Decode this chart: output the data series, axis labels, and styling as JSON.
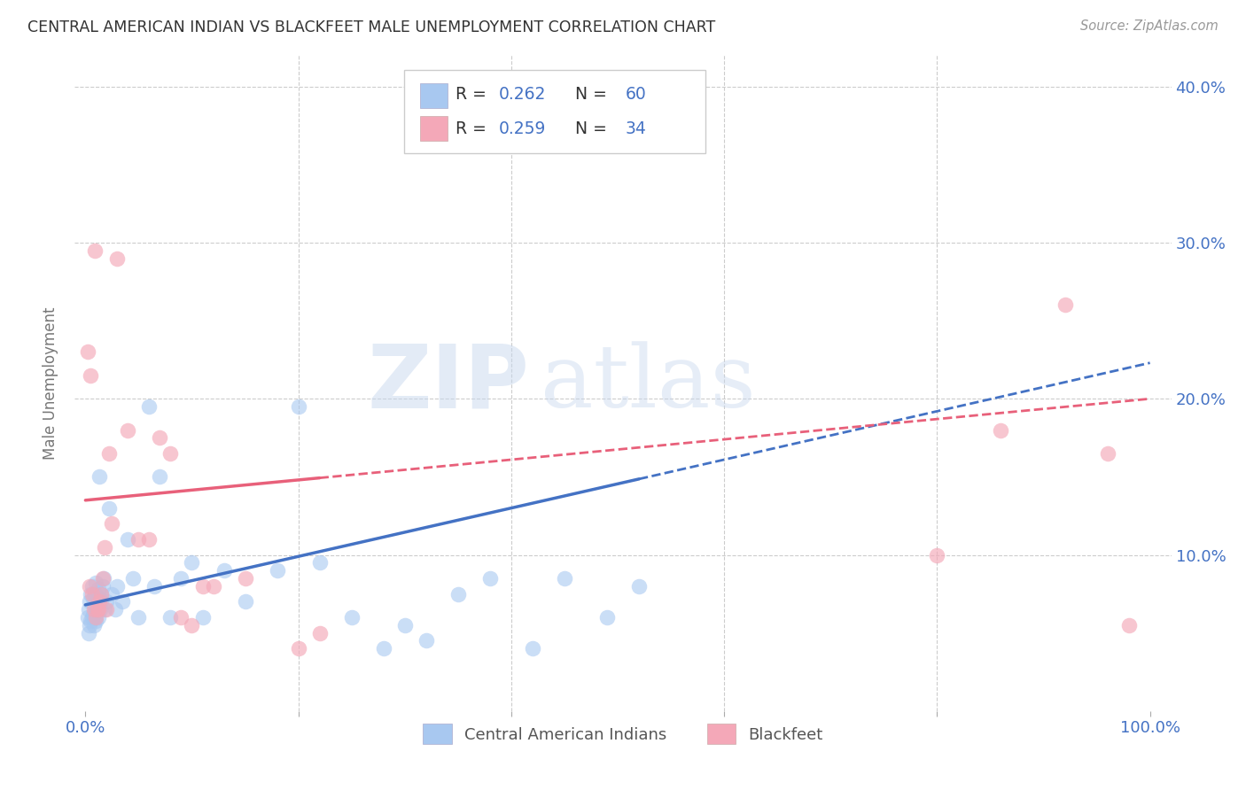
{
  "title": "CENTRAL AMERICAN INDIAN VS BLACKFEET MALE UNEMPLOYMENT CORRELATION CHART",
  "source": "Source: ZipAtlas.com",
  "ylabel": "Male Unemployment",
  "xlim": [
    0.0,
    1.0
  ],
  "ylim": [
    0.0,
    0.42
  ],
  "x_ticks": [
    0.0,
    0.2,
    0.4,
    0.6,
    0.8,
    1.0
  ],
  "y_ticks": [
    0.0,
    0.1,
    0.2,
    0.3,
    0.4
  ],
  "legend_r1": "0.262",
  "legend_n1": "60",
  "legend_r2": "0.259",
  "legend_n2": "34",
  "legend_label1": "Central American Indians",
  "legend_label2": "Blackfeet",
  "color_blue": "#A8C8F0",
  "color_pink": "#F4A8B8",
  "color_blue_line": "#4472C4",
  "color_pink_line": "#E8607A",
  "color_blue_text": "#4472C4",
  "watermark_zip": "ZIP",
  "watermark_atlas": "atlas",
  "blue_points_x": [
    0.002,
    0.003,
    0.003,
    0.004,
    0.004,
    0.005,
    0.005,
    0.006,
    0.006,
    0.007,
    0.007,
    0.008,
    0.008,
    0.009,
    0.009,
    0.01,
    0.01,
    0.011,
    0.011,
    0.012,
    0.012,
    0.013,
    0.013,
    0.014,
    0.015,
    0.015,
    0.016,
    0.017,
    0.018,
    0.02,
    0.022,
    0.025,
    0.028,
    0.03,
    0.035,
    0.04,
    0.045,
    0.05,
    0.06,
    0.065,
    0.07,
    0.08,
    0.09,
    0.1,
    0.11,
    0.13,
    0.15,
    0.18,
    0.2,
    0.22,
    0.25,
    0.28,
    0.3,
    0.32,
    0.35,
    0.38,
    0.42,
    0.45,
    0.49,
    0.52
  ],
  "blue_points_y": [
    0.06,
    0.05,
    0.065,
    0.055,
    0.07,
    0.058,
    0.075,
    0.06,
    0.08,
    0.062,
    0.072,
    0.055,
    0.068,
    0.06,
    0.075,
    0.058,
    0.082,
    0.07,
    0.065,
    0.078,
    0.06,
    0.072,
    0.15,
    0.065,
    0.07,
    0.075,
    0.08,
    0.085,
    0.065,
    0.07,
    0.13,
    0.075,
    0.065,
    0.08,
    0.07,
    0.11,
    0.085,
    0.06,
    0.195,
    0.08,
    0.15,
    0.06,
    0.085,
    0.095,
    0.06,
    0.09,
    0.07,
    0.09,
    0.195,
    0.095,
    0.06,
    0.04,
    0.055,
    0.045,
    0.075,
    0.085,
    0.04,
    0.085,
    0.06,
    0.08
  ],
  "pink_points_x": [
    0.002,
    0.004,
    0.005,
    0.006,
    0.008,
    0.009,
    0.01,
    0.011,
    0.012,
    0.013,
    0.015,
    0.016,
    0.018,
    0.02,
    0.022,
    0.025,
    0.03,
    0.04,
    0.05,
    0.06,
    0.07,
    0.08,
    0.09,
    0.1,
    0.11,
    0.12,
    0.15,
    0.2,
    0.22,
    0.8,
    0.86,
    0.92,
    0.96,
    0.98
  ],
  "pink_points_y": [
    0.23,
    0.08,
    0.215,
    0.075,
    0.065,
    0.295,
    0.06,
    0.065,
    0.065,
    0.07,
    0.075,
    0.085,
    0.105,
    0.065,
    0.165,
    0.12,
    0.29,
    0.18,
    0.11,
    0.11,
    0.175,
    0.165,
    0.06,
    0.055,
    0.08,
    0.08,
    0.085,
    0.04,
    0.05,
    0.1,
    0.18,
    0.26,
    0.165,
    0.055
  ]
}
